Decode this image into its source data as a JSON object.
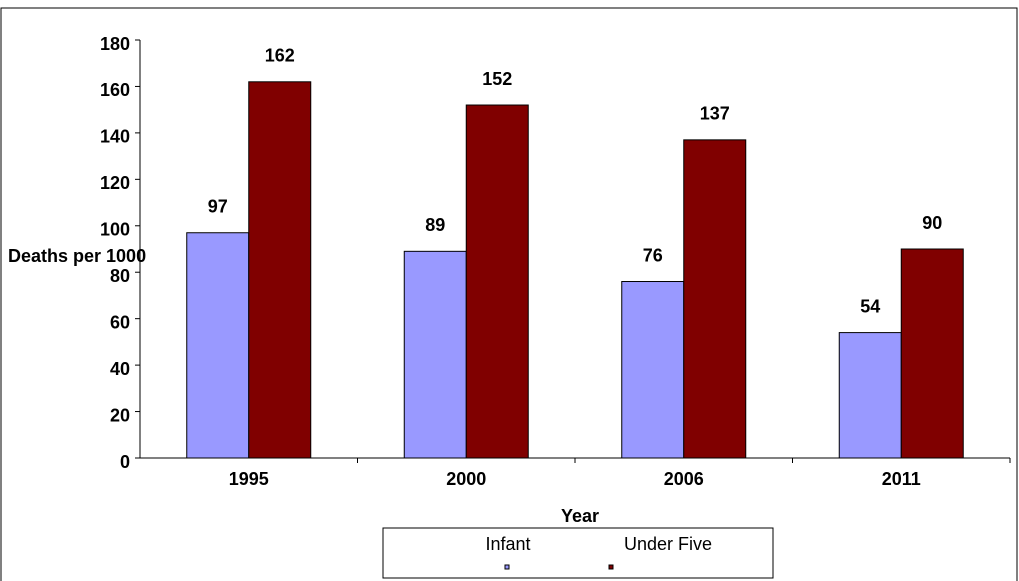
{
  "chart_data": {
    "type": "bar",
    "categories": [
      "1995",
      "2000",
      "2006",
      "2011"
    ],
    "series": [
      {
        "name": "Infant",
        "color": "#9999ff",
        "values": [
          97,
          89,
          76,
          54
        ]
      },
      {
        "name": "Under Five",
        "color": "#800000",
        "values": [
          162,
          152,
          137,
          90
        ]
      }
    ],
    "ylim": [
      0,
      180
    ],
    "yticks": [
      0,
      20,
      40,
      60,
      80,
      100,
      120,
      140,
      160,
      180
    ],
    "y_label": "Deaths per 1000",
    "x_label": "Year",
    "grid": false,
    "legend": "bottom"
  }
}
